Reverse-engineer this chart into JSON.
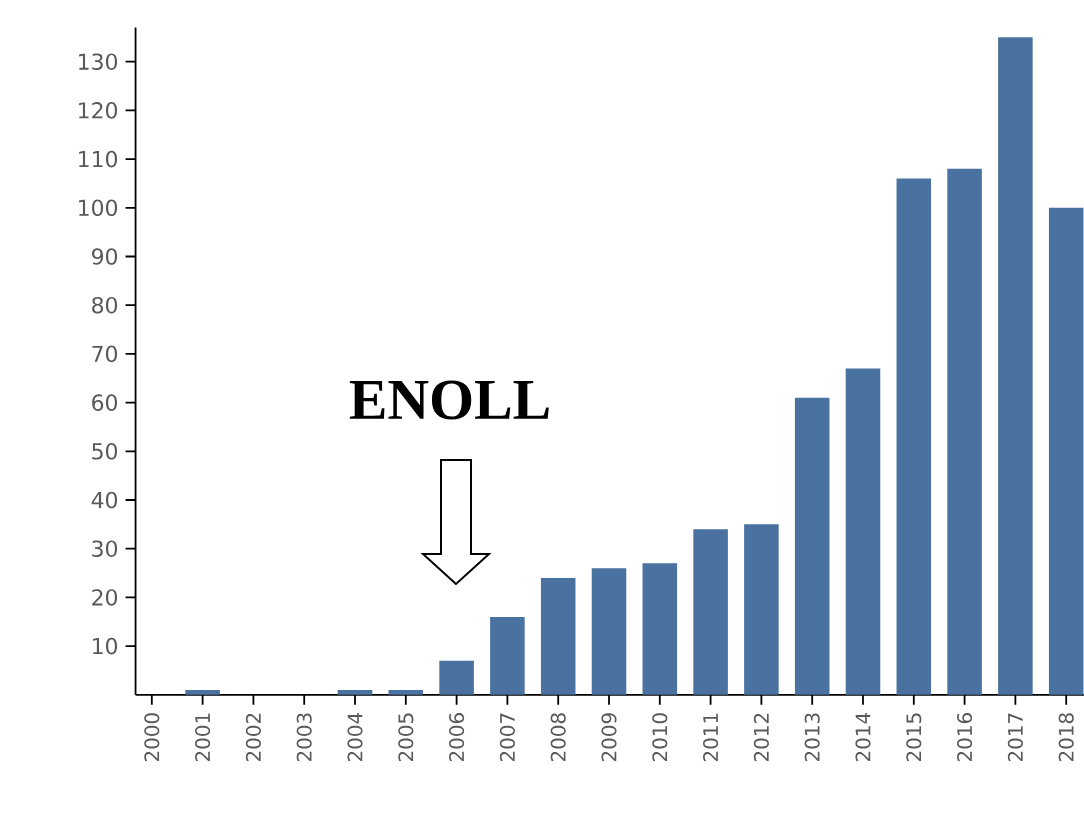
{
  "chart_data": {
    "type": "bar",
    "categories": [
      "2000",
      "2001",
      "2002",
      "2003",
      "2004",
      "2005",
      "2006",
      "2007",
      "2008",
      "2009",
      "2010",
      "2011",
      "2012",
      "2013",
      "2014",
      "2015",
      "2016",
      "2017",
      "2018"
    ],
    "values": [
      0,
      1,
      0,
      0,
      1,
      1,
      7,
      16,
      24,
      26,
      27,
      34,
      35,
      61,
      67,
      106,
      108,
      135,
      100
    ],
    "color": "#4a72a0",
    "ylim": [
      0,
      137
    ],
    "yticks": [
      10,
      20,
      30,
      40,
      50,
      60,
      70,
      80,
      90,
      100,
      110,
      120,
      130
    ],
    "annotations": [
      "ENOLL"
    ]
  }
}
